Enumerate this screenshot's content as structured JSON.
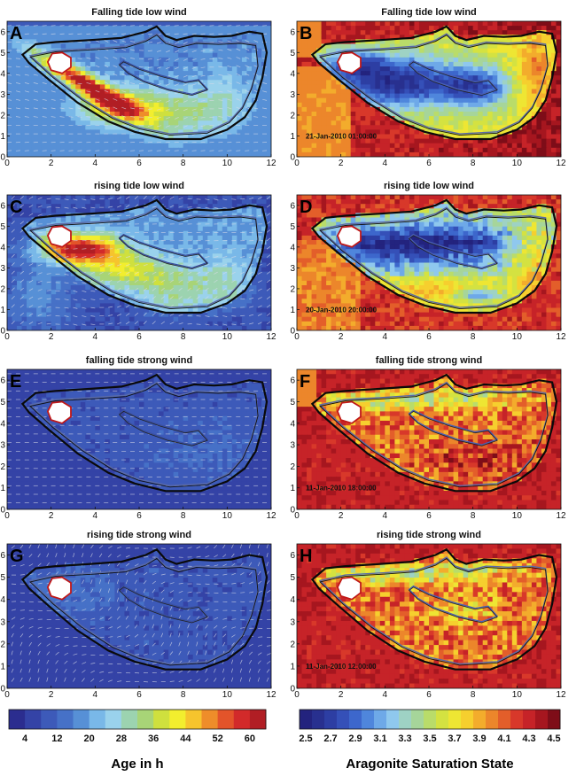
{
  "chart_data": [
    {
      "type": "heatmap",
      "panel": "A",
      "title": "Falling tide low wind",
      "timestamp": "",
      "variable": "age",
      "vectors": true,
      "xlim": [
        0,
        12
      ],
      "ylim": [
        0,
        6.5
      ],
      "xticks": [
        0,
        2,
        4,
        6,
        8,
        10,
        12
      ],
      "yticks": [
        0,
        1,
        2,
        3,
        4,
        5,
        6
      ]
    },
    {
      "type": "heatmap",
      "panel": "B",
      "title": "Falling tide low wind",
      "timestamp": "21-Jan-2010 01:00:00",
      "variable": "aragonite",
      "vectors": false,
      "xlim": [
        0,
        12
      ],
      "ylim": [
        0,
        6.5
      ],
      "xticks": [
        0,
        2,
        4,
        6,
        8,
        10,
        12
      ],
      "yticks": [
        0,
        1,
        2,
        3,
        4,
        5,
        6
      ]
    },
    {
      "type": "heatmap",
      "panel": "C",
      "title": "rising tide low wind",
      "timestamp": "",
      "variable": "age",
      "vectors": true,
      "xlim": [
        0,
        12
      ],
      "ylim": [
        0,
        6.5
      ],
      "xticks": [
        0,
        2,
        4,
        6,
        8,
        10,
        12
      ],
      "yticks": [
        0,
        1,
        2,
        3,
        4,
        5,
        6
      ]
    },
    {
      "type": "heatmap",
      "panel": "D",
      "title": "rising tide low wind",
      "timestamp": "20-Jan-2010 20:00:00",
      "variable": "aragonite",
      "vectors": false,
      "xlim": [
        0,
        12
      ],
      "ylim": [
        0,
        6.5
      ],
      "xticks": [
        0,
        2,
        4,
        6,
        8,
        10,
        12
      ],
      "yticks": [
        0,
        1,
        2,
        3,
        4,
        5,
        6
      ]
    },
    {
      "type": "heatmap",
      "panel": "E",
      "title": "falling tide strong wind",
      "timestamp": "",
      "variable": "age",
      "vectors": true,
      "xlim": [
        0,
        12
      ],
      "ylim": [
        0,
        6.5
      ],
      "xticks": [
        0,
        2,
        4,
        6,
        8,
        10,
        12
      ],
      "yticks": [
        0,
        1,
        2,
        3,
        4,
        5,
        6
      ]
    },
    {
      "type": "heatmap",
      "panel": "F",
      "title": "falling tide strong wind",
      "timestamp": "11-Jan-2010 18:00:00",
      "variable": "aragonite",
      "vectors": false,
      "xlim": [
        0,
        12
      ],
      "ylim": [
        0,
        6.5
      ],
      "xticks": [
        0,
        2,
        4,
        6,
        8,
        10,
        12
      ],
      "yticks": [
        0,
        1,
        2,
        3,
        4,
        5,
        6
      ]
    },
    {
      "type": "heatmap",
      "panel": "G",
      "title": "rising tide strong wind",
      "timestamp": "",
      "variable": "age",
      "vectors": true,
      "xlim": [
        0,
        12
      ],
      "ylim": [
        0,
        6.5
      ],
      "xticks": [
        0,
        2,
        4,
        6,
        8,
        10,
        12
      ],
      "yticks": [
        0,
        1,
        2,
        3,
        4,
        5,
        6
      ]
    },
    {
      "type": "heatmap",
      "panel": "H",
      "title": "rising tide strong wind",
      "timestamp": "11-Jan-2010 12:00:00",
      "variable": "aragonite",
      "vectors": false,
      "xlim": [
        0,
        12
      ],
      "ylim": [
        0,
        6.5
      ],
      "xticks": [
        0,
        2,
        4,
        6,
        8,
        10,
        12
      ],
      "yticks": [
        0,
        1,
        2,
        3,
        4,
        5,
        6
      ]
    }
  ],
  "colorbars": [
    {
      "id": "age",
      "title": "Age in h",
      "tick_labels": [
        "4",
        "12",
        "20",
        "28",
        "36",
        "44",
        "52",
        "60"
      ],
      "min": 0,
      "max": 64,
      "colors": [
        "#2b2d8f",
        "#3443a6",
        "#3d5ab9",
        "#4671c7",
        "#5790d6",
        "#79b8e8",
        "#9ad2ec",
        "#9cd3b0",
        "#a8d477",
        "#cfe03e",
        "#f2ee2e",
        "#f6c42d",
        "#ee8d2a",
        "#e3542a",
        "#d22a2a",
        "#b11e24"
      ]
    },
    {
      "id": "aragonite",
      "title": "Aragonite Saturation State",
      "tick_labels": [
        "2.5",
        "2.7",
        "2.9",
        "3.1",
        "3.3",
        "3.5",
        "3.7",
        "3.9",
        "4.1",
        "4.3",
        "4.5"
      ],
      "min": 2.5,
      "max": 4.5,
      "colors": [
        "#23237e",
        "#28308f",
        "#2d3ea3",
        "#3550b8",
        "#3d67cc",
        "#4f86dc",
        "#6ea9e8",
        "#8fc8ee",
        "#9ed2c4",
        "#a6d59a",
        "#b9dc6a",
        "#d4e241",
        "#eee633",
        "#f6cf2e",
        "#f3ac2c",
        "#ec862b",
        "#e35e2a",
        "#d8382a",
        "#c62328",
        "#a6161f",
        "#7e0d18"
      ]
    }
  ]
}
